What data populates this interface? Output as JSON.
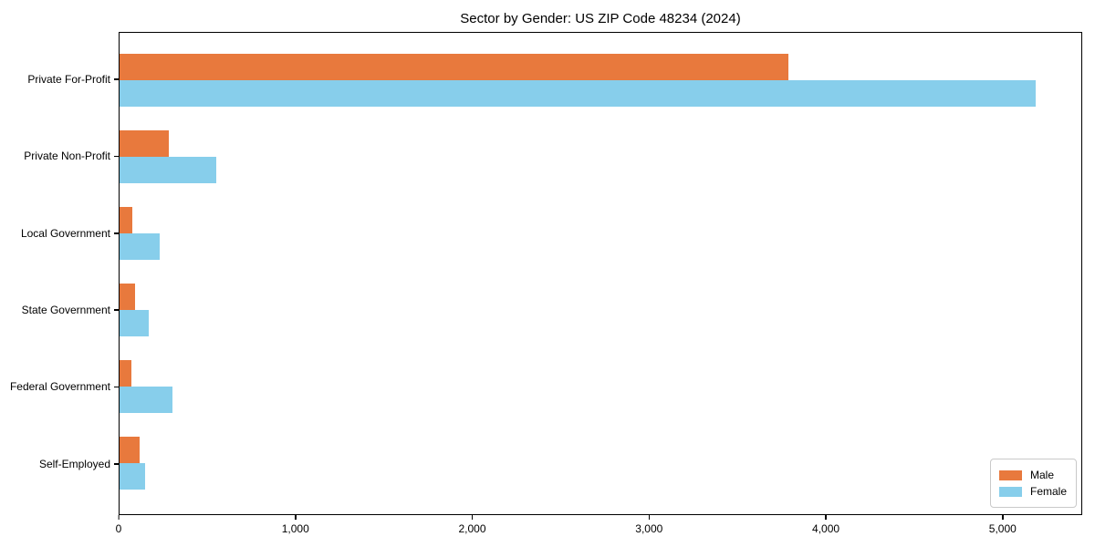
{
  "figure": {
    "background": "#ffffff",
    "axis_color": "#000000",
    "legend_border_color": "#c9c9c9"
  },
  "chart_data": {
    "type": "bar",
    "orientation": "horizontal",
    "title": "Sector by Gender: US ZIP Code 48234 (2024)",
    "xlabel": "",
    "ylabel": "",
    "categories": [
      "Private For-Profit",
      "Private Non-Profit",
      "Local Government",
      "State Government",
      "Federal Government",
      "Self-Employed"
    ],
    "series": [
      {
        "name": "Male",
        "color": "#e8793d",
        "values": [
          3790,
          280,
          70,
          90,
          65,
          115
        ]
      },
      {
        "name": "Female",
        "color": "#87ceeb",
        "values": [
          5190,
          550,
          225,
          165,
          300,
          145
        ]
      }
    ],
    "xlim": [
      0,
      5450
    ],
    "xticks": [
      0,
      1000,
      2000,
      3000,
      4000,
      5000
    ],
    "xtick_labels": [
      "0",
      "1,000",
      "2,000",
      "3,000",
      "4,000",
      "5,000"
    ],
    "grid": false,
    "legend_position": "lower right",
    "legend_items": [
      "Male",
      "Female"
    ]
  }
}
